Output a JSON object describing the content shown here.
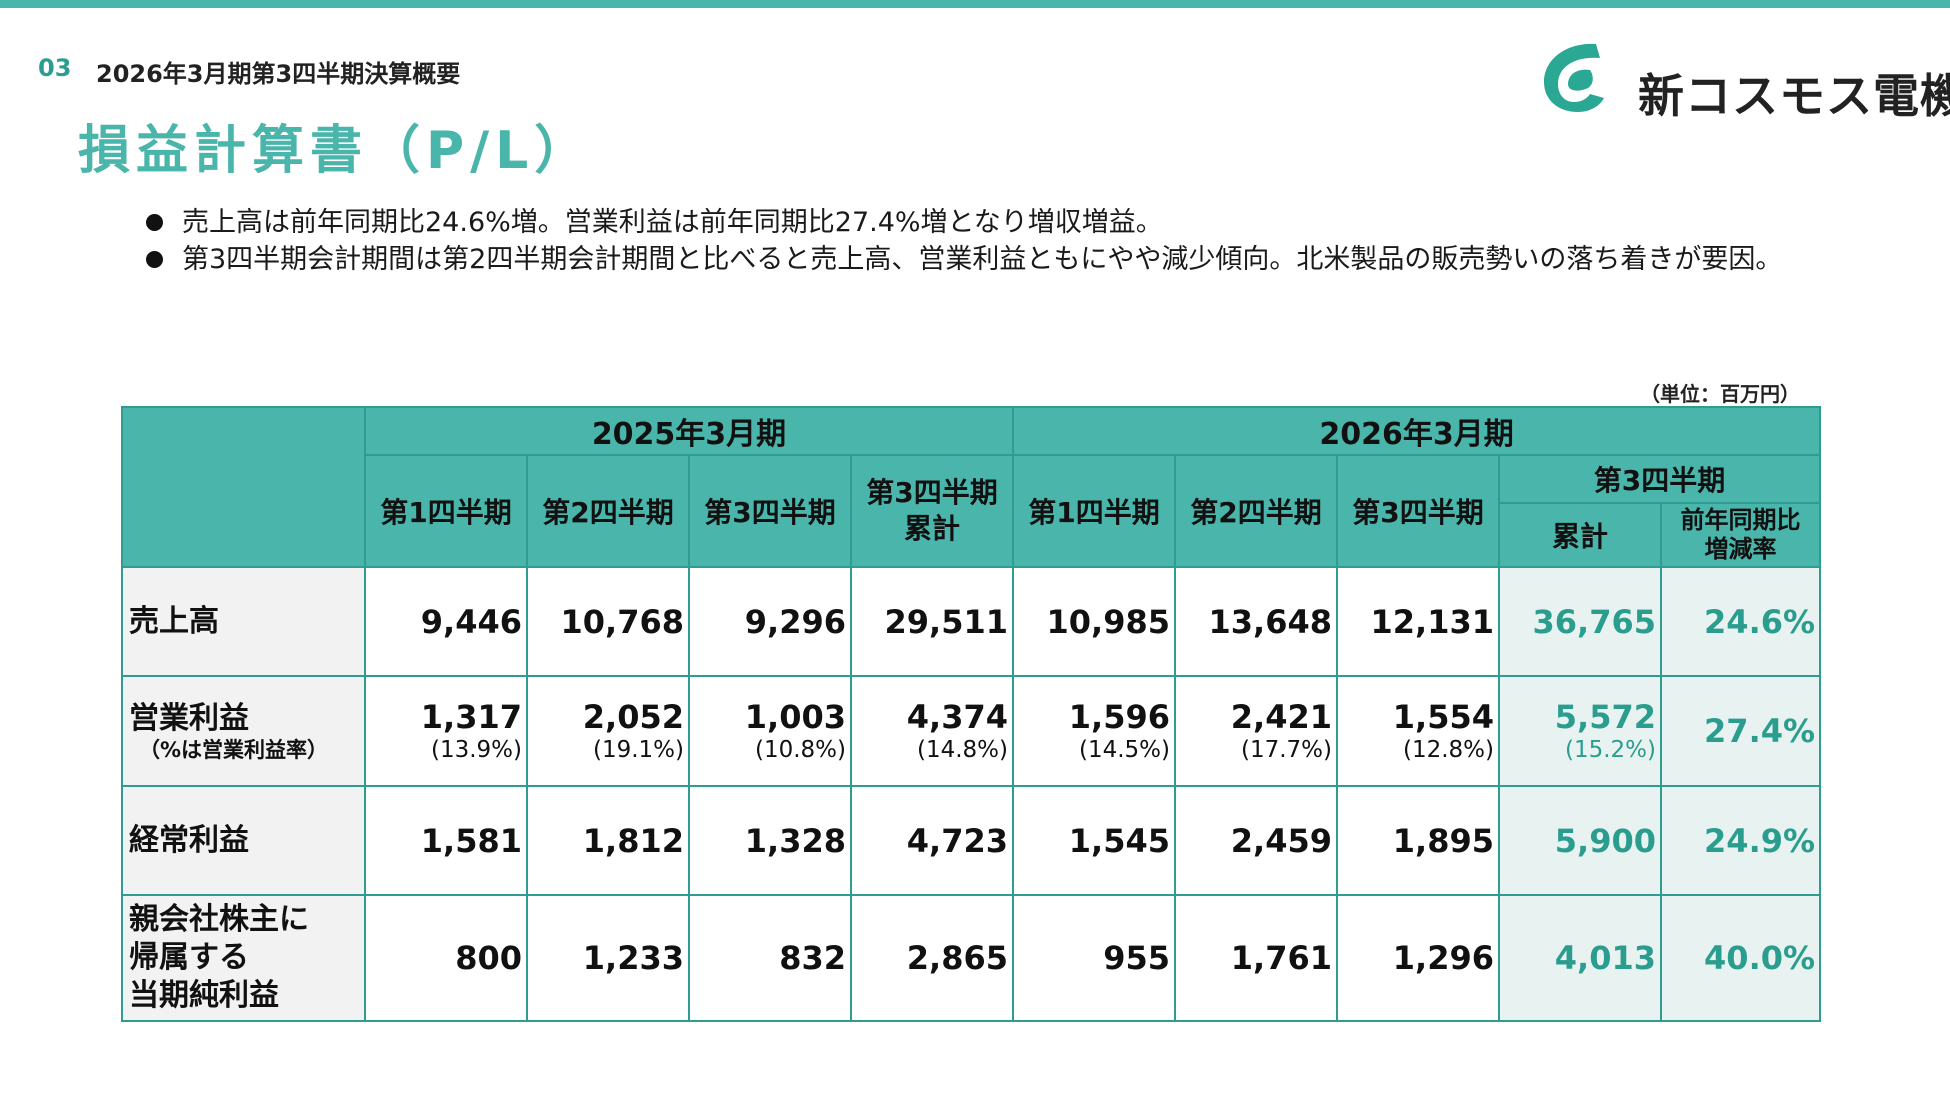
{
  "header": {
    "page_number": "03",
    "section": "2026年3月期第3四半期決算概要",
    "title": "損益計算書（P/L）",
    "company_name": "新コスモス電機",
    "accent_color": "#4ab5aa"
  },
  "bullets": [
    "売上高は前年同期比24.6%増。営業利益は前年同期比27.4%増となり増収増益。",
    "第3四半期会計期間は第2四半期会計期間と比べると売上高、営業利益ともにやや減少傾向。北米製品の販売勢いの落ち着きが要因。"
  ],
  "unit": "（単位：百万円）",
  "table": {
    "periods": [
      "2025年3月期",
      "2026年3月期"
    ],
    "quarters": [
      "第1四半期",
      "第2四半期",
      "第3四半期"
    ],
    "cumulative_q3": "第3四半期\n累計",
    "q3_group": "第3四半期",
    "q3_cumulative": "累計",
    "yoy": "前年同期比\n増減率",
    "rows": [
      {
        "label": "売上高",
        "values": [
          "9,446",
          "10,768",
          "9,296",
          "29,511",
          "10,985",
          "13,648",
          "12,131",
          "36,765"
        ],
        "yoy": "24.6%"
      },
      {
        "label": "営業利益",
        "sublabel": "（%は営業利益率）",
        "values": [
          "1,317",
          "2,052",
          "1,003",
          "4,374",
          "1,596",
          "2,421",
          "1,554",
          "5,572"
        ],
        "margins": [
          "(13.9%)",
          "(19.1%)",
          "(10.8%)",
          "(14.8%)",
          "(14.5%)",
          "(17.7%)",
          "(12.8%)",
          "(15.2%)"
        ],
        "yoy": "27.4%"
      },
      {
        "label": "経常利益",
        "values": [
          "1,581",
          "1,812",
          "1,328",
          "4,723",
          "1,545",
          "2,459",
          "1,895",
          "5,900"
        ],
        "yoy": "24.9%"
      },
      {
        "label": "親会社株主に\n帰属する\n当期純利益",
        "values": [
          "800",
          "1,233",
          "832",
          "2,865",
          "955",
          "1,761",
          "1,296",
          "4,013"
        ],
        "yoy": "40.0%"
      }
    ]
  }
}
